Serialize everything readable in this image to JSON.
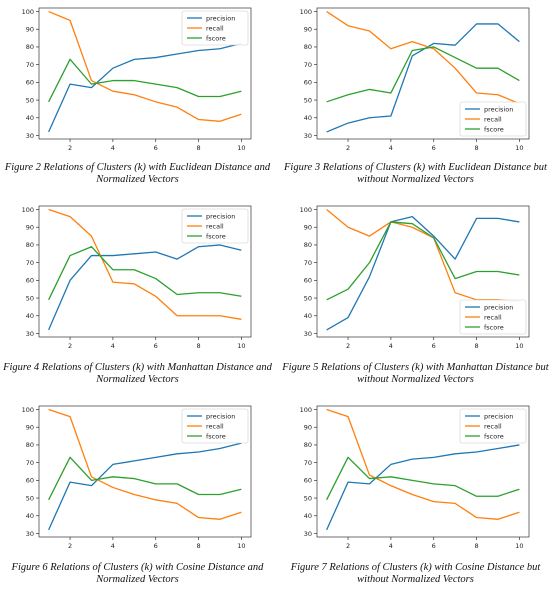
{
  "colors": {
    "precision": "#1f77b4",
    "recall": "#ff7f0e",
    "fscore": "#2ca02c"
  },
  "chart_data": [
    {
      "type": "line",
      "caption": "Figure 2 Relations of Clusters (k) with Euclidean Distance and Normalized Vectors",
      "x": [
        1,
        2,
        3,
        4,
        5,
        6,
        7,
        8,
        9,
        10
      ],
      "xticks": [
        2,
        4,
        6,
        8,
        10
      ],
      "ylim": [
        30,
        100
      ],
      "yticks": [
        30,
        40,
        50,
        60,
        70,
        80,
        90,
        100
      ],
      "legend": "top-right",
      "series": [
        {
          "name": "precision",
          "values": [
            32,
            59,
            57,
            68,
            73,
            74,
            76,
            78,
            79,
            82
          ]
        },
        {
          "name": "recall",
          "values": [
            100,
            95,
            61,
            55,
            53,
            49,
            46,
            39,
            38,
            42
          ]
        },
        {
          "name": "fscore",
          "values": [
            49,
            73,
            59,
            61,
            61,
            59,
            57,
            52,
            52,
            55
          ]
        }
      ]
    },
    {
      "type": "line",
      "caption": "Figure 3 Relations of Clusters (k) with Euclidean Distance but without Normalized Vectors",
      "x": [
        1,
        2,
        3,
        4,
        5,
        6,
        7,
        8,
        9,
        10
      ],
      "xticks": [
        2,
        4,
        6,
        8,
        10
      ],
      "ylim": [
        30,
        100
      ],
      "yticks": [
        30,
        40,
        50,
        60,
        70,
        80,
        90,
        100
      ],
      "legend": "bottom-right",
      "series": [
        {
          "name": "precision",
          "values": [
            32,
            37,
            40,
            41,
            75,
            82,
            81,
            93,
            93,
            83
          ]
        },
        {
          "name": "recall",
          "values": [
            100,
            92,
            89,
            79,
            83,
            79,
            68,
            54,
            53,
            48
          ]
        },
        {
          "name": "fscore",
          "values": [
            49,
            53,
            56,
            54,
            78,
            80,
            74,
            68,
            68,
            61
          ]
        }
      ]
    },
    {
      "type": "line",
      "caption": "Figure 4 Relations of Clusters (k) with Manhattan Distance and Normalized Vectors",
      "x": [
        1,
        2,
        3,
        4,
        5,
        6,
        7,
        8,
        9,
        10
      ],
      "xticks": [
        2,
        4,
        6,
        8,
        10
      ],
      "ylim": [
        30,
        100
      ],
      "yticks": [
        30,
        40,
        50,
        60,
        70,
        80,
        90,
        100
      ],
      "legend": "top-right",
      "series": [
        {
          "name": "precision",
          "values": [
            32,
            60,
            74,
            74,
            75,
            76,
            72,
            79,
            80,
            77
          ]
        },
        {
          "name": "recall",
          "values": [
            100,
            96,
            85,
            59,
            58,
            51,
            40,
            40,
            40,
            38
          ]
        },
        {
          "name": "fscore",
          "values": [
            49,
            74,
            79,
            66,
            66,
            61,
            52,
            53,
            53,
            51
          ]
        }
      ]
    },
    {
      "type": "line",
      "caption": "Figure 5 Relations of Clusters (k) with Manhattan Distance but without Normalized Vectors",
      "x": [
        1,
        2,
        3,
        4,
        5,
        6,
        7,
        8,
        9,
        10
      ],
      "xticks": [
        2,
        4,
        6,
        8,
        10
      ],
      "ylim": [
        30,
        100
      ],
      "yticks": [
        30,
        40,
        50,
        60,
        70,
        80,
        90,
        100
      ],
      "legend": "bottom-right",
      "series": [
        {
          "name": "precision",
          "values": [
            32,
            39,
            62,
            93,
            96,
            85,
            72,
            95,
            95,
            93
          ]
        },
        {
          "name": "recall",
          "values": [
            100,
            90,
            85,
            93,
            90,
            84,
            53,
            49,
            49,
            48
          ]
        },
        {
          "name": "fscore",
          "values": [
            49,
            55,
            70,
            93,
            92,
            84,
            61,
            65,
            65,
            63
          ]
        }
      ]
    },
    {
      "type": "line",
      "caption": "Figure 6 Relations of Clusters (k) with Cosine Distance and Normalized Vectors",
      "x": [
        1,
        2,
        3,
        4,
        5,
        6,
        7,
        8,
        9,
        10
      ],
      "xticks": [
        2,
        4,
        6,
        8,
        10
      ],
      "ylim": [
        30,
        100
      ],
      "yticks": [
        30,
        40,
        50,
        60,
        70,
        80,
        90,
        100
      ],
      "legend": "top-right",
      "series": [
        {
          "name": "precision",
          "values": [
            32,
            59,
            57,
            69,
            71,
            73,
            75,
            76,
            78,
            81
          ]
        },
        {
          "name": "recall",
          "values": [
            100,
            96,
            62,
            56,
            52,
            49,
            47,
            39,
            38,
            42
          ]
        },
        {
          "name": "fscore",
          "values": [
            49,
            73,
            60,
            62,
            61,
            58,
            58,
            52,
            52,
            55
          ]
        }
      ]
    },
    {
      "type": "line",
      "caption": "Figure 7 Relations of Clusters (k) with Cosine Distance but without Normalized Vectors",
      "x": [
        1,
        2,
        3,
        4,
        5,
        6,
        7,
        8,
        9,
        10
      ],
      "xticks": [
        2,
        4,
        6,
        8,
        10
      ],
      "ylim": [
        30,
        100
      ],
      "yticks": [
        30,
        40,
        50,
        60,
        70,
        80,
        90,
        100
      ],
      "legend": "top-right",
      "series": [
        {
          "name": "precision",
          "values": [
            32,
            59,
            58,
            69,
            72,
            73,
            75,
            76,
            78,
            80
          ]
        },
        {
          "name": "recall",
          "values": [
            100,
            96,
            63,
            57,
            52,
            48,
            47,
            39,
            38,
            42
          ]
        },
        {
          "name": "fscore",
          "values": [
            49,
            73,
            61,
            62,
            60,
            58,
            57,
            51,
            51,
            55
          ]
        }
      ]
    }
  ]
}
